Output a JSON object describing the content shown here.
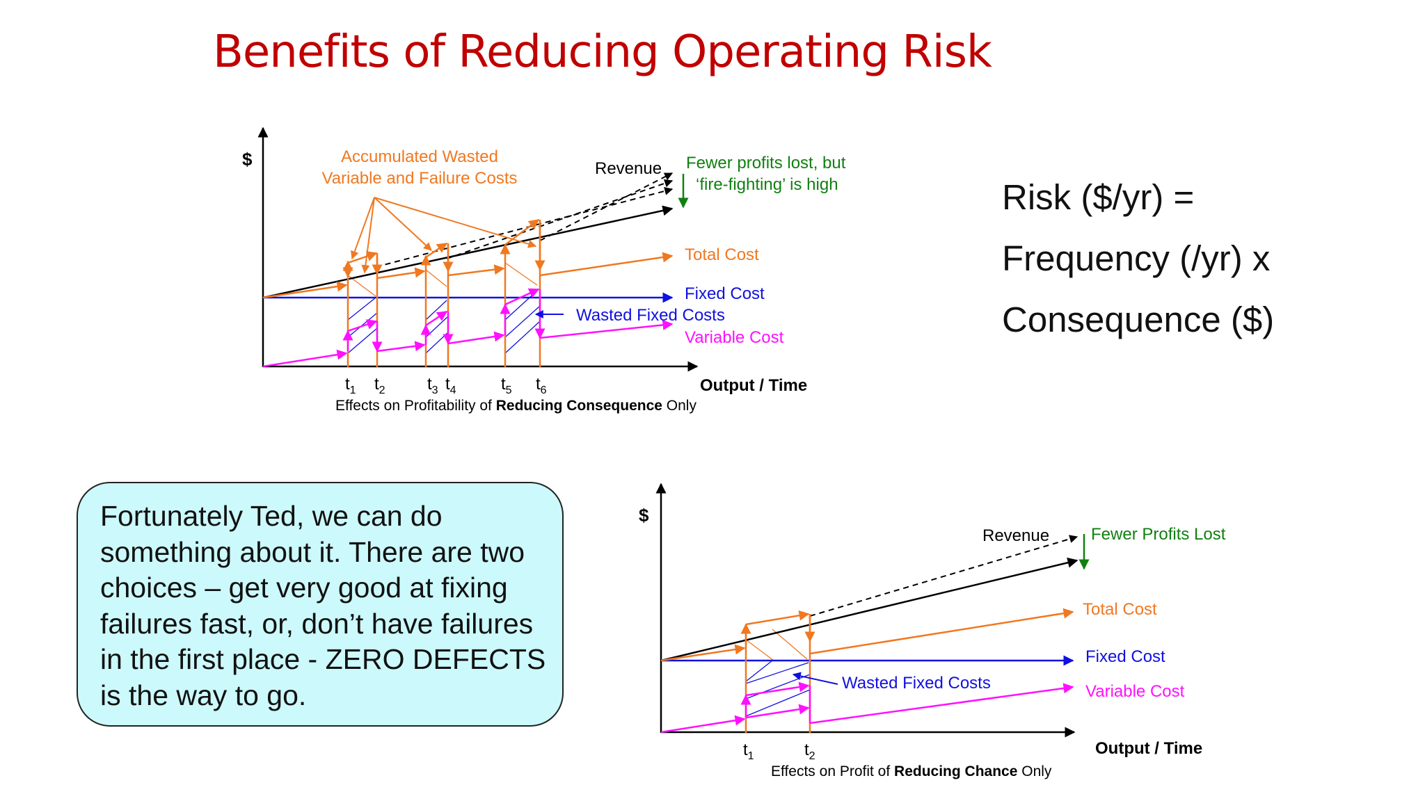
{
  "slide": {
    "title": "Benefits of Reducing Operating Risk",
    "formula": [
      "Risk ($/yr) =",
      "Frequency (/yr) x",
      "Consequence ($)"
    ],
    "callout": "Fortunately Ted, we can do something about it.  There are two choices – get very good at fixing failures fast, or, don’t have failures in the first place - ZERO DEFECTS is the way to go."
  },
  "colors": {
    "title": "#c00000",
    "revenue": "#000000",
    "total_cost": "#f07820",
    "fixed_cost": "#1010e0",
    "variable_cost": "#ff10ff",
    "benefit": "#108010",
    "callout_bg": "#ccf9fb"
  },
  "diagram_top": {
    "y_axis_label": "$",
    "x_axis_label": "Output / Time",
    "caption_pre": "Effects on Profitability of ",
    "caption_bold": "Reducing Consequence",
    "caption_post": " Only",
    "accumulated_label_1": "Accumulated Wasted",
    "accumulated_label_2": "Variable and Failure Costs",
    "revenue": "Revenue",
    "benefit_1": "Fewer profits lost, but",
    "benefit_2": "‘fire-fighting’ is high",
    "total_cost": "Total Cost",
    "fixed_cost": "Fixed Cost",
    "wasted_fixed": "Wasted Fixed Costs",
    "variable_cost": "Variable Cost",
    "ticks": [
      "1",
      "2",
      "3",
      "4",
      "5",
      "6"
    ]
  },
  "diagram_bottom": {
    "y_axis_label": "$",
    "x_axis_label": "Output / Time",
    "caption_pre": "Effects on Profit of ",
    "caption_bold": "Reducing Chance",
    "caption_post": " Only",
    "revenue": "Revenue",
    "benefit": "Fewer Profits Lost",
    "total_cost": "Total Cost",
    "fixed_cost": "Fixed Cost",
    "wasted_fixed": "Wasted Fixed Costs",
    "variable_cost": "Variable Cost",
    "ticks": [
      "1",
      "2"
    ]
  }
}
